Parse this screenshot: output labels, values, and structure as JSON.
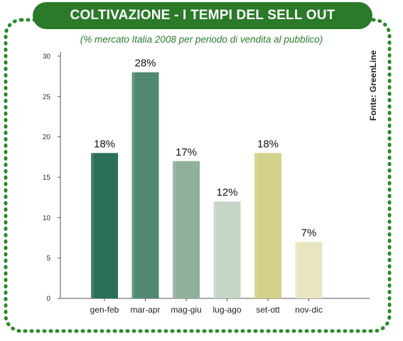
{
  "header": {
    "title": "COLTIVAZIONE - I TEMPI DEL SELL OUT",
    "subtitle": "(% mercato Italia 2008 per periodo di vendita al pubblico)",
    "source": "Fonte: GreenLine"
  },
  "colors": {
    "frame": "#2a8a2a",
    "title_bg": "#2a7a2a",
    "subtitle": "#2e7d2e"
  },
  "chart_data": {
    "type": "bar",
    "title": "COLTIVAZIONE - I TEMPI DEL SELL OUT",
    "subtitle": "(% mercato Italia 2008 per periodo di vendita al pubblico)",
    "categories": [
      "gen-feb",
      "mar-apr",
      "mag-giu",
      "lug-ago",
      "set-ott",
      "nov-dic"
    ],
    "values": [
      18,
      28,
      17,
      12,
      18,
      7
    ],
    "data_labels": [
      "18%",
      "28%",
      "17%",
      "12%",
      "18%",
      "7%"
    ],
    "bar_colors": [
      "#2b6f58",
      "#4f8a70",
      "#8fb09c",
      "#c5d6c6",
      "#d2d28a",
      "#e7e6c0"
    ],
    "yticks": [
      "0",
      "5",
      "10",
      "15",
      "20",
      "25",
      "30"
    ],
    "ylim": [
      0,
      30
    ],
    "xlabel": "",
    "ylabel": "",
    "grid": false,
    "legend": "none"
  }
}
